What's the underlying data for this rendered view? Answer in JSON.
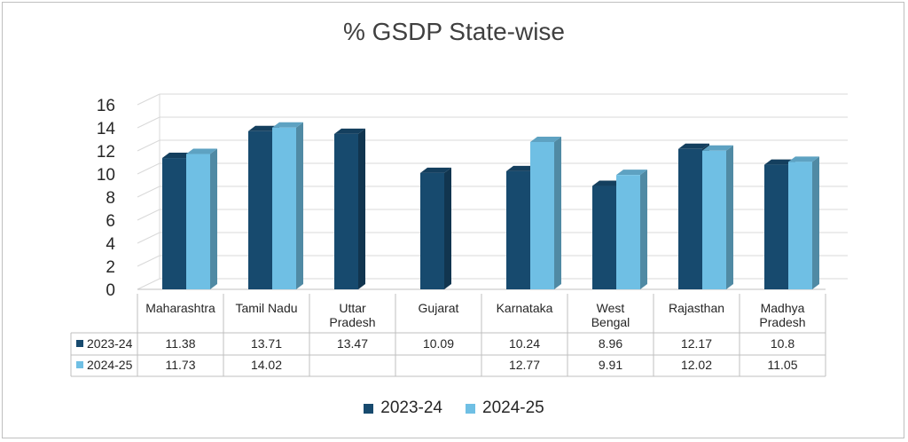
{
  "chart_data": {
    "type": "bar",
    "title": "% GSDP State-wise",
    "categories": [
      "Maharashtra",
      "Tamil Nadu",
      "Uttar Pradesh",
      "Gujarat",
      "Karnataka",
      "West Bengal",
      "Rajasthan",
      "Madhya Pradesh"
    ],
    "series": [
      {
        "name": "2023-24",
        "values": [
          11.38,
          13.71,
          13.47,
          10.09,
          10.24,
          8.96,
          12.17,
          10.8
        ],
        "color": "#174A6E"
      },
      {
        "name": "2024-25",
        "values": [
          11.73,
          14.02,
          null,
          null,
          12.77,
          9.91,
          12.02,
          11.05
        ],
        "color": "#6FBFE4"
      }
    ],
    "y_ticks": [
      "0",
      "2",
      "4",
      "6",
      "8",
      "10",
      "12",
      "14",
      "16"
    ],
    "ylim": [
      0,
      16
    ],
    "grid": true,
    "legend": "bottom",
    "table": {
      "rows": [
        {
          "label": "2023-24",
          "cells": [
            "11.38",
            "13.71",
            "13.47",
            "10.09",
            "10.24",
            "8.96",
            "12.17",
            "10.8"
          ]
        },
        {
          "label": "2024-25",
          "cells": [
            "11.73",
            "14.02",
            "",
            "",
            "12.77",
            "9.91",
            "12.02",
            "11.05"
          ]
        }
      ]
    }
  }
}
